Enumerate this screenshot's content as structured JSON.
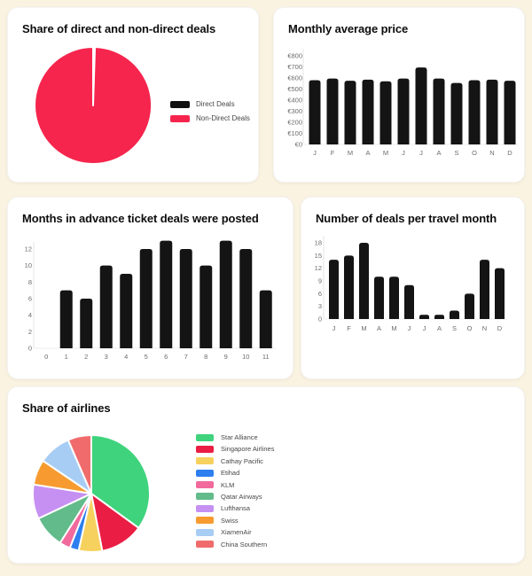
{
  "page": {
    "background_color": "#faf3e2",
    "card_color": "#ffffff",
    "bar_color": "#141414"
  },
  "chart_data": [
    {
      "type": "pie",
      "title": "Share of direct and non-direct deals",
      "legend_position": "right",
      "slices": [
        {
          "label": "Direct Deals",
          "value": 0.5,
          "color": "#111111"
        },
        {
          "label": "Non-Direct Deals",
          "value": 99.5,
          "color": "#f6254d"
        }
      ]
    },
    {
      "type": "bar",
      "title": "Monthly average price",
      "categories": [
        "J",
        "F",
        "M",
        "A",
        "M",
        "J",
        "J",
        "A",
        "S",
        "O",
        "N",
        "D"
      ],
      "values": [
        580,
        595,
        575,
        585,
        570,
        595,
        695,
        595,
        555,
        580,
        585,
        575
      ],
      "bar_color": "#141414",
      "ylabel_prefix": "€",
      "y_tick_max": 800,
      "y_step": 100,
      "grid": false
    },
    {
      "type": "bar",
      "title": "Months in advance ticket deals were posted",
      "categories": [
        "0",
        "1",
        "2",
        "3",
        "4",
        "5",
        "6",
        "7",
        "8",
        "9",
        "10",
        "11"
      ],
      "values": [
        0,
        7,
        6,
        10,
        9,
        12,
        13,
        12,
        10,
        13,
        12,
        7
      ],
      "bar_color": "#141414",
      "ylabel_prefix": "",
      "y_tick_max": 12,
      "y_step": 2,
      "grid": false
    },
    {
      "type": "bar",
      "title": "Number of deals per travel month",
      "categories": [
        "J",
        "F",
        "M",
        "A",
        "M",
        "J",
        "J",
        "A",
        "S",
        "O",
        "N",
        "D"
      ],
      "values": [
        14,
        15,
        18,
        10,
        10,
        8,
        1,
        1,
        2,
        6,
        14,
        12
      ],
      "bar_color": "#141414",
      "ylabel_prefix": "",
      "y_tick_max": 18,
      "y_step": 3,
      "grid": false
    },
    {
      "type": "pie",
      "title": "Share of airlines",
      "legend_position": "right",
      "slices": [
        {
          "label": "Star Alliance",
          "value": 35,
          "color": "#3ed37c"
        },
        {
          "label": "Singapore Airlines",
          "value": 12,
          "color": "#ea1d44"
        },
        {
          "label": "Cathay Pacific",
          "value": 6.5,
          "color": "#f7d15e"
        },
        {
          "label": "Etihad",
          "value": 2.5,
          "color": "#2d7ff0"
        },
        {
          "label": "KLM",
          "value": 3,
          "color": "#f2699c"
        },
        {
          "label": "Qatar Airways",
          "value": 9,
          "color": "#62bb8a"
        },
        {
          "label": "Lufthansa",
          "value": 9.5,
          "color": "#c690f2"
        },
        {
          "label": "Swiss",
          "value": 7,
          "color": "#f79b30"
        },
        {
          "label": "XiamenAir",
          "value": 9,
          "color": "#a8cdf4"
        },
        {
          "label": "China Southern",
          "value": 6.5,
          "color": "#f06c6c"
        }
      ]
    }
  ]
}
